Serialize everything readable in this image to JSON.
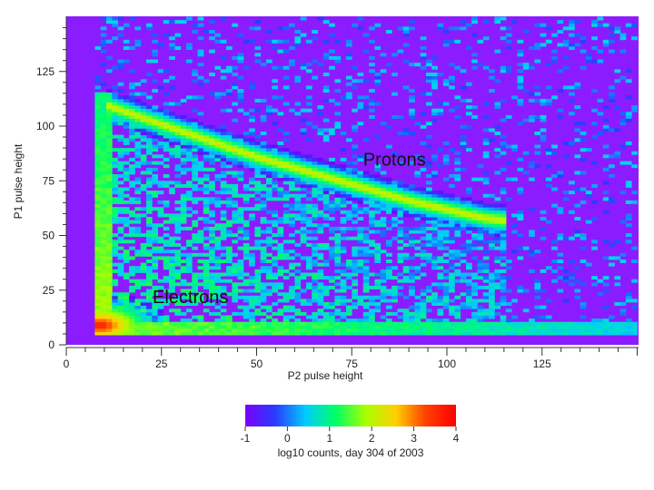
{
  "chart_data": {
    "type": "heatmap",
    "title": "",
    "xlabel": "P2 pulse height",
    "ylabel": "P1 pulse height",
    "xlim": [
      0,
      150
    ],
    "ylim": [
      0,
      150
    ],
    "x_ticks": [
      0,
      25,
      50,
      75,
      100,
      125
    ],
    "y_ticks": [
      0,
      25,
      50,
      75,
      100,
      125
    ],
    "colorbar": {
      "label": "log10 counts, day 304 of 2003",
      "range": [
        -1,
        4
      ],
      "ticks": [
        -1,
        0,
        1,
        2,
        3,
        4
      ],
      "colors": [
        "#7a00ff",
        "#2a3cff",
        "#00ccff",
        "#00ff66",
        "#a8ff00",
        "#ffd000",
        "#ff4000",
        "#ff0000"
      ]
    },
    "background_color": "#8b1cff",
    "annotations": [
      {
        "text": "Protons",
        "x": 78,
        "y": 82
      },
      {
        "text": "Electrons",
        "x": 23,
        "y": 19
      }
    ],
    "features": {
      "proton_track": [
        [
          10,
          110
        ],
        [
          20,
          104
        ],
        [
          30,
          98
        ],
        [
          40,
          92
        ],
        [
          50,
          86
        ],
        [
          60,
          81
        ],
        [
          70,
          76
        ],
        [
          80,
          71
        ],
        [
          90,
          66
        ],
        [
          100,
          62
        ],
        [
          110,
          58
        ],
        [
          115,
          57
        ]
      ],
      "electron_peak": {
        "x": [
          8,
          25
        ],
        "y": [
          5,
          18
        ],
        "peak_log10": 3.8
      },
      "threshold_edge_x": 8,
      "threshold_edge_y": 7
    }
  }
}
